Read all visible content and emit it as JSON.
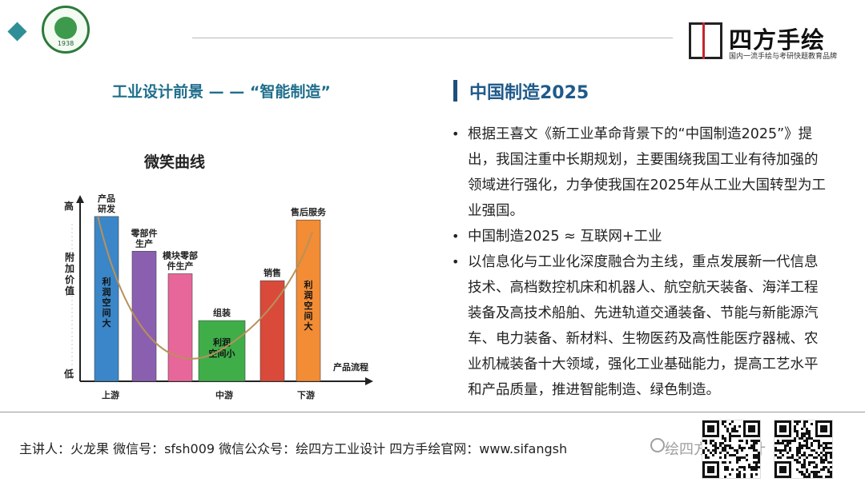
{
  "header": {
    "university_year": "1938",
    "brand_name": "四方手绘",
    "brand_tagline": "国内一流手绘与考研快题教育品牌"
  },
  "left": {
    "title": "工业设计前景 — — “智能制造”",
    "chart_title": "微笑曲线"
  },
  "chart_data": {
    "type": "bar",
    "title": "微笑曲线",
    "xlabel": "产品流程",
    "ylabel": "附加价值",
    "y_high_label": "高",
    "y_low_label": "低",
    "x_stage_labels": [
      "上游",
      "中游",
      "下游"
    ],
    "categories": [
      "产品研发",
      "零部件生产",
      "模块零部件生产",
      "组装",
      "销售",
      "售后服务"
    ],
    "values": [
      95,
      75,
      62,
      35,
      58,
      93
    ],
    "colors": [
      "#3a86c8",
      "#8b5fb0",
      "#e8679a",
      "#3fae49",
      "#d94a3a",
      "#f28c35"
    ],
    "ylim": [
      0,
      100
    ],
    "bar_annotations": [
      "利润空间大",
      "",
      "",
      "利润空间小",
      "",
      "利润空间大"
    ],
    "curve": "smile"
  },
  "right": {
    "title": "中国制造2025",
    "bullets": [
      "根据王喜文《新工业革命背景下的“中国制造2025”》提出，我国注重中长期规划，主要围绕我国工业有待加强的领域进行强化，力争使我国在2025年从工业大国转型为工业强国。",
      "中国制造2025 ≈ 互联网+工业",
      "以信息化与工业化深度融合为主线，重点发展新一代信息技术、高档数控机床和机器人、航空航天装备、海洋工程装备及高技术船舶、先进轨道交通装备、节能与新能源汽车、电力装备、新材料、生物医药及高性能医疗器械、农业机械装备十大领域，强化工业基础能力，提高工艺水平和产品质量，推进智能制造、绿色制造。"
    ]
  },
  "footer": {
    "text": "主讲人：火龙果   微信号：sfsh009   微信公众号：绘四方工业设计   四方手绘官网：www.sifangsh",
    "watermark": "绘四方工业设计"
  },
  "colors": {
    "accent": "#1f6e8c",
    "title_blue": "#1f5a8a"
  }
}
